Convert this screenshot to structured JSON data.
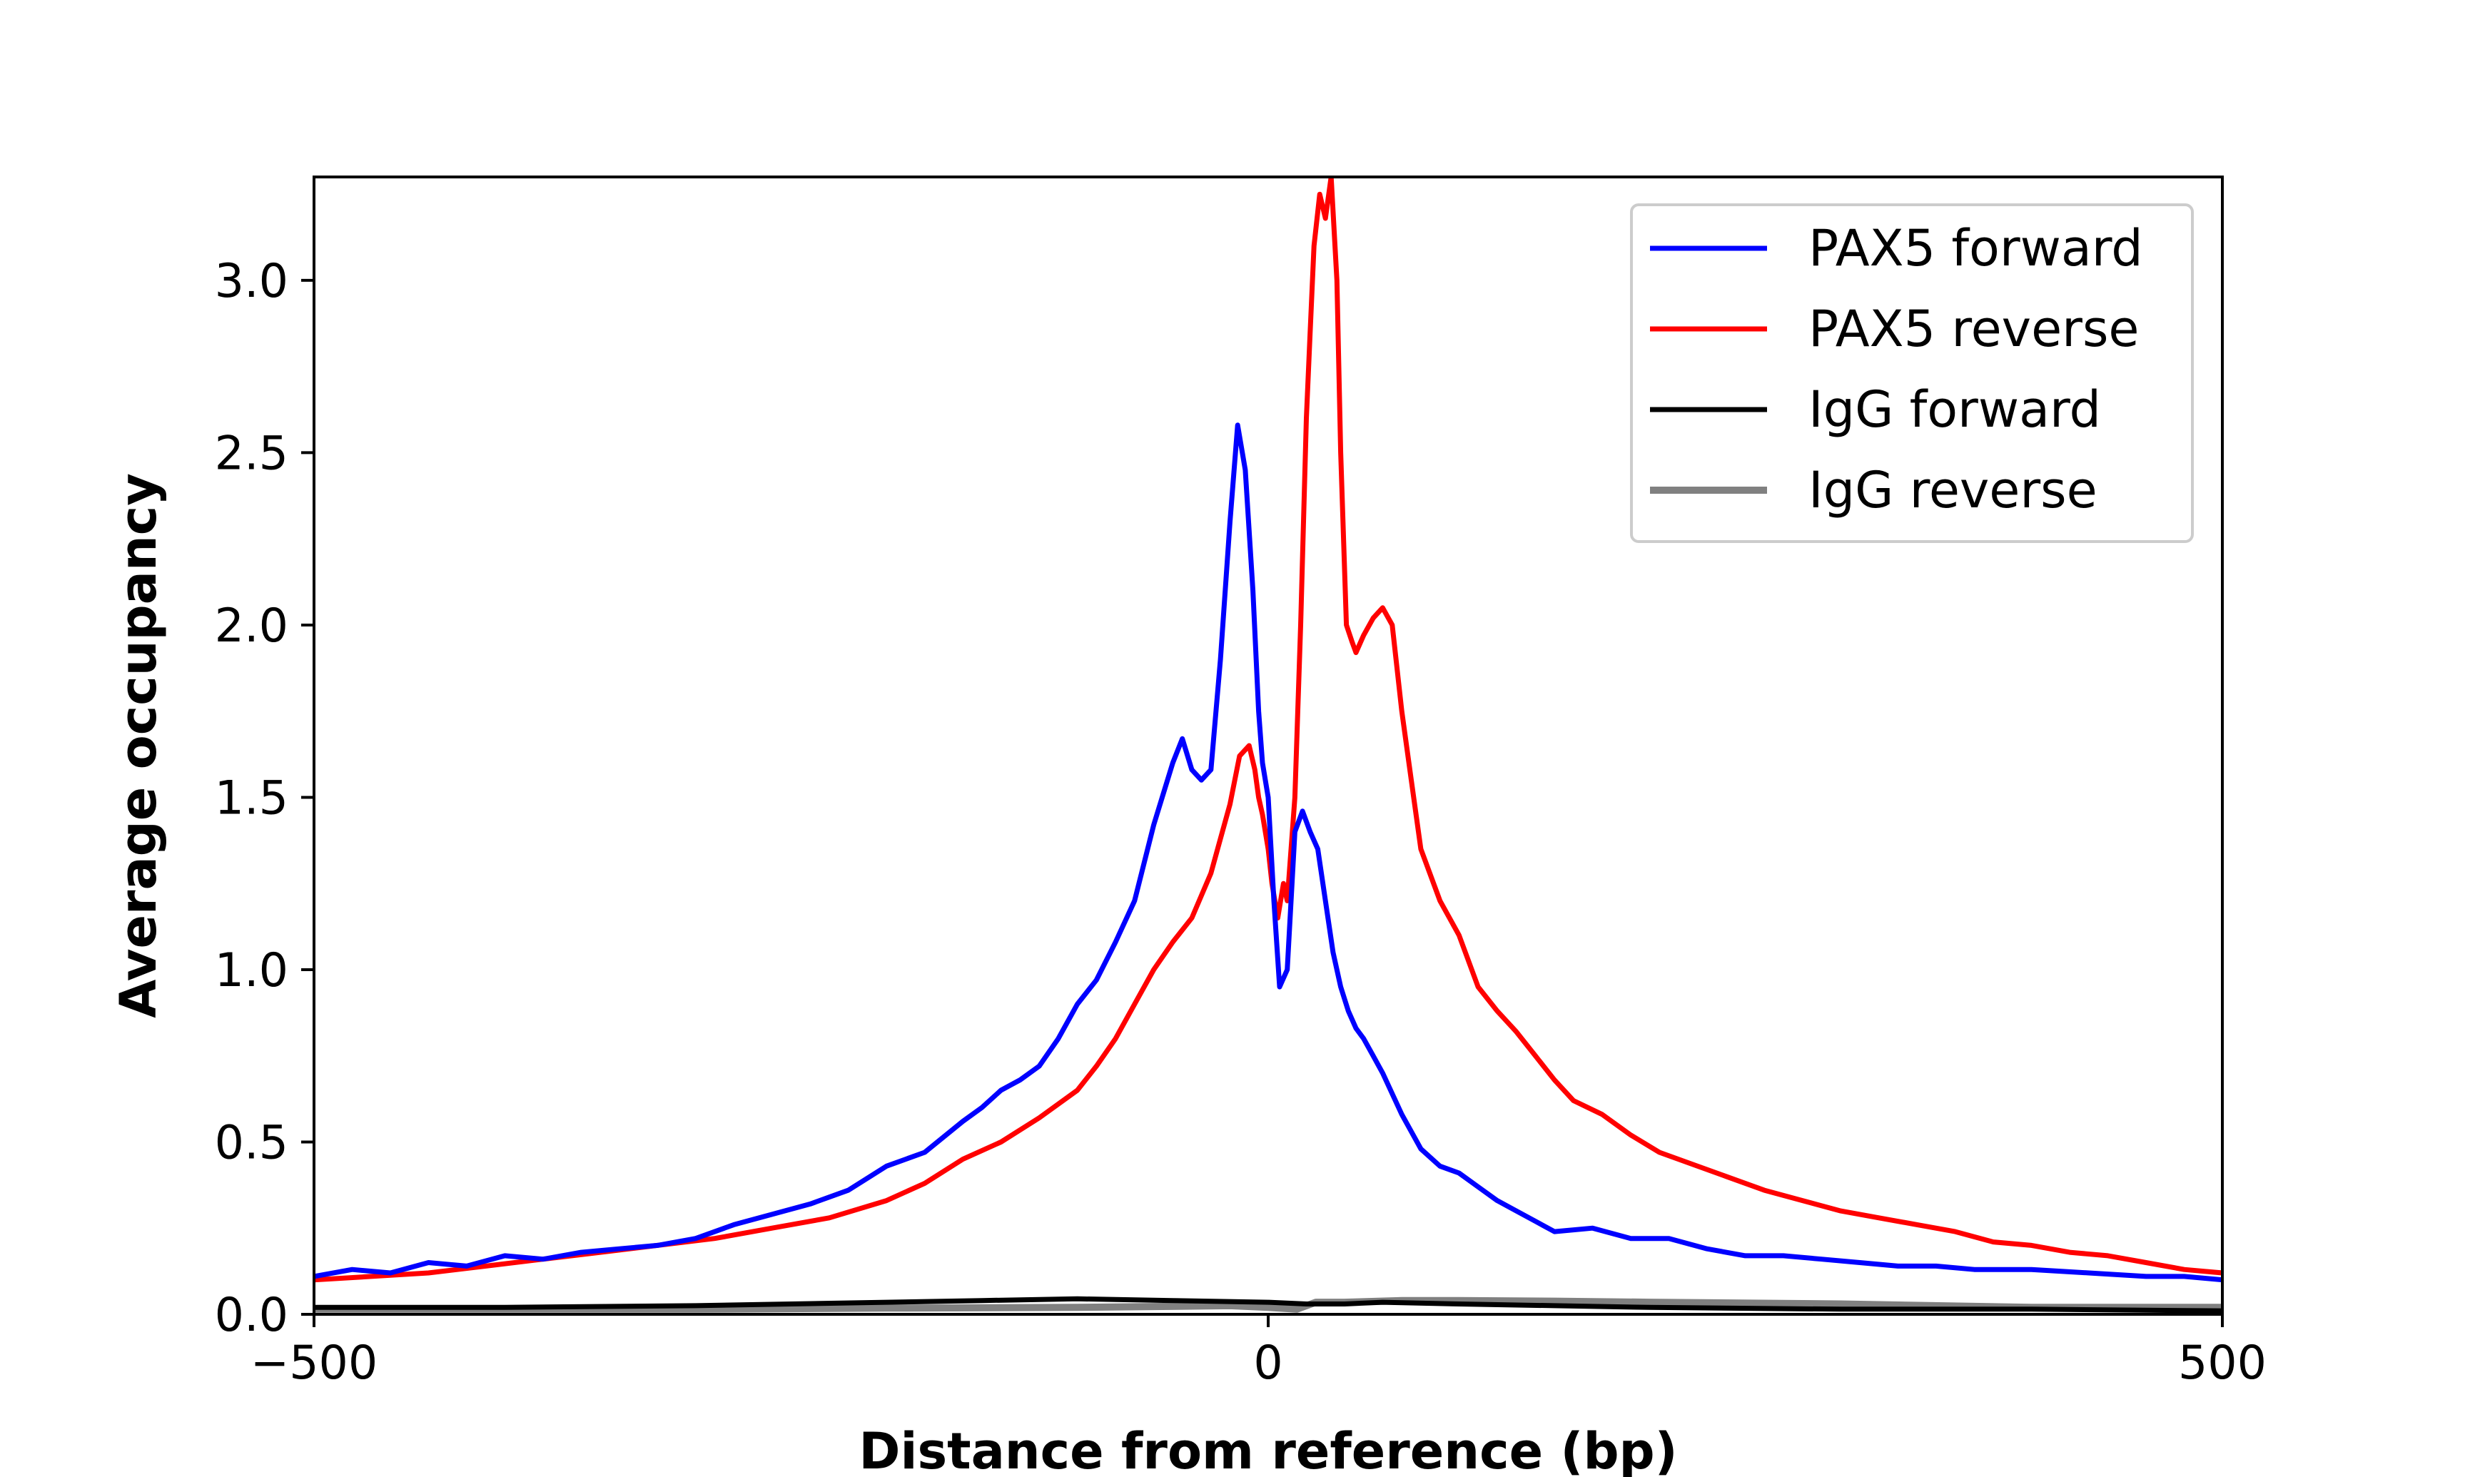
{
  "chart_data": {
    "type": "line",
    "title": "",
    "xlabel": "Distance from reference (bp)",
    "ylabel": "Average occupancy",
    "xlim": [
      -500,
      500
    ],
    "ylim": [
      0,
      3.3
    ],
    "xticks": [
      -500,
      0,
      500
    ],
    "xtick_labels": [
      "−500",
      "0",
      "500"
    ],
    "yticks": [
      0.0,
      0.5,
      1.0,
      1.5,
      2.0,
      2.5,
      3.0
    ],
    "ytick_labels": [
      "0.0",
      "0.5",
      "1.0",
      "1.5",
      "2.0",
      "2.5",
      "3.0"
    ],
    "grid": false,
    "legend_position": "top-right",
    "series": [
      {
        "name": "PAX5 forward",
        "color": "#0000ff",
        "x": [
          -500,
          -480,
          -460,
          -440,
          -420,
          -400,
          -380,
          -360,
          -340,
          -320,
          -300,
          -280,
          -260,
          -240,
          -220,
          -200,
          -180,
          -160,
          -150,
          -140,
          -130,
          -120,
          -110,
          -100,
          -90,
          -80,
          -70,
          -60,
          -50,
          -45,
          -40,
          -35,
          -30,
          -25,
          -20,
          -16,
          -12,
          -8,
          -5,
          -3,
          0,
          3,
          6,
          10,
          14,
          18,
          22,
          26,
          30,
          34,
          38,
          42,
          46,
          50,
          55,
          60,
          70,
          80,
          90,
          100,
          110,
          120,
          130,
          140,
          150,
          170,
          190,
          210,
          230,
          250,
          270,
          290,
          310,
          330,
          350,
          370,
          400,
          430,
          460,
          480,
          500
        ],
        "y": [
          0.11,
          0.13,
          0.12,
          0.15,
          0.14,
          0.17,
          0.16,
          0.18,
          0.19,
          0.2,
          0.22,
          0.26,
          0.29,
          0.32,
          0.36,
          0.43,
          0.47,
          0.56,
          0.6,
          0.65,
          0.68,
          0.72,
          0.8,
          0.9,
          0.97,
          1.08,
          1.2,
          1.42,
          1.6,
          1.67,
          1.58,
          1.55,
          1.58,
          1.9,
          2.3,
          2.58,
          2.45,
          2.1,
          1.75,
          1.6,
          1.5,
          1.2,
          0.95,
          1.0,
          1.4,
          1.46,
          1.4,
          1.35,
          1.2,
          1.05,
          0.95,
          0.88,
          0.83,
          0.8,
          0.75,
          0.7,
          0.58,
          0.48,
          0.43,
          0.41,
          0.37,
          0.33,
          0.3,
          0.27,
          0.24,
          0.25,
          0.22,
          0.22,
          0.19,
          0.17,
          0.17,
          0.16,
          0.15,
          0.14,
          0.14,
          0.13,
          0.13,
          0.12,
          0.11,
          0.11,
          0.1
        ]
      },
      {
        "name": "PAX5 reverse",
        "color": "#ff0000",
        "x": [
          -500,
          -470,
          -440,
          -410,
          -380,
          -350,
          -320,
          -290,
          -260,
          -230,
          -200,
          -180,
          -160,
          -140,
          -120,
          -100,
          -90,
          -80,
          -70,
          -60,
          -50,
          -40,
          -30,
          -25,
          -20,
          -15,
          -10,
          -7,
          -5,
          -3,
          0,
          2,
          5,
          8,
          10,
          14,
          17,
          20,
          22,
          24,
          27,
          30,
          33,
          36,
          38,
          41,
          44,
          46,
          50,
          55,
          60,
          65,
          70,
          75,
          80,
          90,
          100,
          110,
          120,
          130,
          140,
          150,
          160,
          175,
          190,
          205,
          220,
          240,
          260,
          280,
          300,
          320,
          340,
          360,
          380,
          400,
          420,
          440,
          460,
          480,
          500
        ],
        "y": [
          0.1,
          0.11,
          0.12,
          0.14,
          0.16,
          0.18,
          0.2,
          0.22,
          0.25,
          0.28,
          0.33,
          0.38,
          0.45,
          0.5,
          0.57,
          0.65,
          0.72,
          0.8,
          0.9,
          1.0,
          1.08,
          1.15,
          1.28,
          1.38,
          1.48,
          1.62,
          1.65,
          1.58,
          1.5,
          1.45,
          1.35,
          1.25,
          1.15,
          1.25,
          1.2,
          1.5,
          2.0,
          2.6,
          2.85,
          3.1,
          3.25,
          3.18,
          3.3,
          3.0,
          2.5,
          2.0,
          1.95,
          1.92,
          1.97,
          2.02,
          2.05,
          2.0,
          1.75,
          1.55,
          1.35,
          1.2,
          1.1,
          0.95,
          0.88,
          0.82,
          0.75,
          0.68,
          0.62,
          0.58,
          0.52,
          0.47,
          0.44,
          0.4,
          0.36,
          0.33,
          0.3,
          0.28,
          0.26,
          0.24,
          0.21,
          0.2,
          0.18,
          0.17,
          0.15,
          0.13,
          0.12
        ]
      },
      {
        "name": "IgG forward",
        "color": "#000000",
        "x": [
          -500,
          -400,
          -300,
          -200,
          -150,
          -100,
          -50,
          0,
          20,
          40,
          60,
          100,
          150,
          200,
          300,
          400,
          500
        ],
        "y": [
          0.02,
          0.02,
          0.025,
          0.035,
          0.04,
          0.045,
          0.04,
          0.035,
          0.03,
          0.03,
          0.035,
          0.03,
          0.025,
          0.02,
          0.015,
          0.015,
          0.01
        ]
      },
      {
        "name": "IgG reverse",
        "color": "#808080",
        "x": [
          -500,
          -400,
          -300,
          -200,
          -100,
          -20,
          0,
          15,
          25,
          40,
          70,
          100,
          150,
          200,
          300,
          400,
          500
        ],
        "y": [
          0.015,
          0.015,
          0.015,
          0.018,
          0.02,
          0.025,
          0.02,
          0.015,
          0.035,
          0.035,
          0.04,
          0.04,
          0.038,
          0.035,
          0.03,
          0.02,
          0.02
        ]
      }
    ]
  }
}
